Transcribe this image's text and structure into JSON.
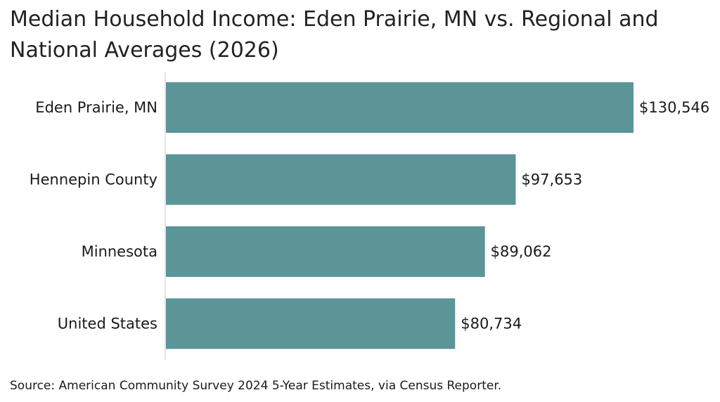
{
  "title": "Median Household Income: Eden Prairie, MN vs. Regional and National Averages (2026)",
  "source": "Source: American Community Survey 2024 5-Year Estimates, via Census Reporter.",
  "colors": {
    "bar": "#5b9597",
    "axis": "#dcdcdc",
    "text": "#1a1a1a"
  },
  "chart_data": {
    "type": "bar",
    "orientation": "horizontal",
    "title": "Median Household Income: Eden Prairie, MN vs. Regional and National Averages (2026)",
    "categories": [
      "Eden Prairie, MN",
      "Hennepin County",
      "Minnesota",
      "United States"
    ],
    "values": [
      130546,
      97653,
      89062,
      80734
    ],
    "value_labels": [
      "$130,546",
      "$97,653",
      "$89,062",
      "$80,734"
    ],
    "xlim": [
      0,
      130546
    ],
    "grid": false,
    "legend": "none"
  }
}
